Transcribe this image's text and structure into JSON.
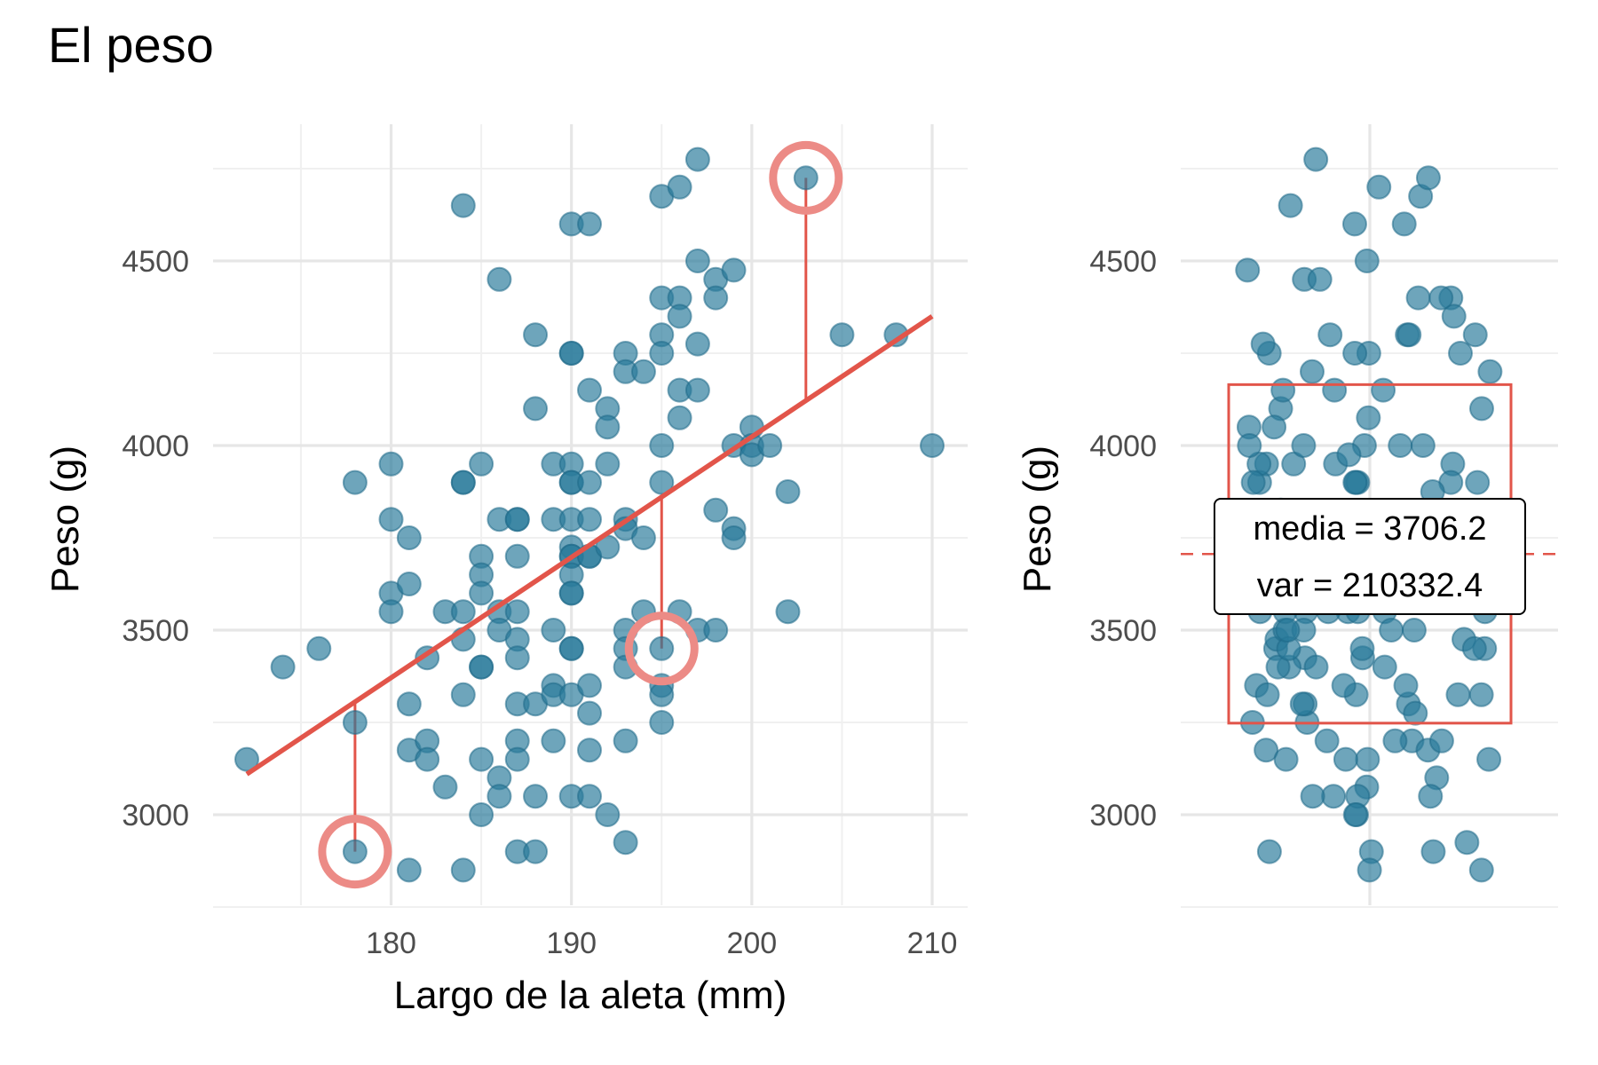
{
  "title": "El peso",
  "colors": {
    "point": "#2a7a9b",
    "accent": "#e2554a",
    "highlight": "#ec8b86"
  },
  "chart_data": [
    {
      "type": "scatter",
      "xlabel": "Largo de la aleta (mm)",
      "ylabel": "Peso (g)",
      "xlim": [
        172,
        212
      ],
      "ylim": [
        2740,
        4880
      ],
      "x_ticks": [
        180,
        190,
        200,
        210
      ],
      "y_ticks": [
        3000,
        3500,
        4000,
        4500
      ],
      "grid": true,
      "fit_line": {
        "x": [
          172,
          210
        ],
        "y": [
          3110,
          4350
        ]
      },
      "highlighted": [
        {
          "x": 178,
          "y": 2900,
          "fitted": 3305
        },
        {
          "x": 195,
          "y": 3450,
          "fitted": 3860
        },
        {
          "x": 203,
          "y": 4725,
          "fitted": 4120
        }
      ],
      "points": [
        [
          172,
          3150
        ],
        [
          174,
          3400
        ],
        [
          176,
          3450
        ],
        [
          178,
          3250
        ],
        [
          178,
          3900
        ],
        [
          178,
          2900
        ],
        [
          180,
          3950
        ],
        [
          180,
          3800
        ],
        [
          180,
          3600
        ],
        [
          180,
          3550
        ],
        [
          181,
          3750
        ],
        [
          181,
          3625
        ],
        [
          181,
          3300
        ],
        [
          181,
          3175
        ],
        [
          181,
          2850
        ],
        [
          182,
          3425
        ],
        [
          182,
          3200
        ],
        [
          182,
          3150
        ],
        [
          183,
          3550
        ],
        [
          183,
          3075
        ],
        [
          184,
          4650
        ],
        [
          184,
          3900
        ],
        [
          184,
          3900
        ],
        [
          184,
          3550
        ],
        [
          184,
          3475
        ],
        [
          184,
          3325
        ],
        [
          184,
          2850
        ],
        [
          185,
          3950
        ],
        [
          185,
          3700
        ],
        [
          185,
          3650
        ],
        [
          185,
          3600
        ],
        [
          185,
          3400
        ],
        [
          185,
          3400
        ],
        [
          185,
          3150
        ],
        [
          185,
          3000
        ],
        [
          186,
          4450
        ],
        [
          186,
          3800
        ],
        [
          186,
          3550
        ],
        [
          186,
          3500
        ],
        [
          186,
          3100
        ],
        [
          186,
          3050
        ],
        [
          187,
          3800
        ],
        [
          187,
          3800
        ],
        [
          187,
          3700
        ],
        [
          187,
          3550
        ],
        [
          187,
          3475
        ],
        [
          187,
          3425
        ],
        [
          187,
          3300
        ],
        [
          187,
          3200
        ],
        [
          187,
          3150
        ],
        [
          187,
          2900
        ],
        [
          188,
          4300
        ],
        [
          188,
          4100
        ],
        [
          188,
          3300
        ],
        [
          188,
          3050
        ],
        [
          188,
          2900
        ],
        [
          189,
          3950
        ],
        [
          189,
          3800
        ],
        [
          189,
          3500
        ],
        [
          189,
          3350
        ],
        [
          189,
          3325
        ],
        [
          189,
          3200
        ],
        [
          190,
          4600
        ],
        [
          190,
          4250
        ],
        [
          190,
          4250
        ],
        [
          190,
          3950
        ],
        [
          190,
          3900
        ],
        [
          190,
          3900
        ],
        [
          190,
          3800
        ],
        [
          190,
          3725
        ],
        [
          190,
          3700
        ],
        [
          190,
          3700
        ],
        [
          190,
          3650
        ],
        [
          190,
          3600
        ],
        [
          190,
          3600
        ],
        [
          190,
          3450
        ],
        [
          190,
          3450
        ],
        [
          190,
          3325
        ],
        [
          190,
          3050
        ],
        [
          191,
          4600
        ],
        [
          191,
          4150
        ],
        [
          191,
          3900
        ],
        [
          191,
          3800
        ],
        [
          191,
          3700
        ],
        [
          191,
          3700
        ],
        [
          191,
          3350
        ],
        [
          191,
          3275
        ],
        [
          191,
          3175
        ],
        [
          191,
          3050
        ],
        [
          192,
          4100
        ],
        [
          192,
          4050
        ],
        [
          192,
          3950
        ],
        [
          192,
          3725
        ],
        [
          192,
          3000
        ],
        [
          193,
          4250
        ],
        [
          193,
          4200
        ],
        [
          193,
          3800
        ],
        [
          193,
          3775
        ],
        [
          193,
          3500
        ],
        [
          193,
          3450
        ],
        [
          193,
          3400
        ],
        [
          193,
          3200
        ],
        [
          193,
          2925
        ],
        [
          194,
          4200
        ],
        [
          194,
          3750
        ],
        [
          194,
          3550
        ],
        [
          195,
          4675
        ],
        [
          195,
          4400
        ],
        [
          195,
          4300
        ],
        [
          195,
          4250
        ],
        [
          195,
          4000
        ],
        [
          195,
          3900
        ],
        [
          195,
          3450
        ],
        [
          195,
          3350
        ],
        [
          195,
          3325
        ],
        [
          195,
          3250
        ],
        [
          196,
          4700
        ],
        [
          196,
          4400
        ],
        [
          196,
          4350
        ],
        [
          196,
          4150
        ],
        [
          196,
          4075
        ],
        [
          196,
          3550
        ],
        [
          197,
          4775
        ],
        [
          197,
          4500
        ],
        [
          197,
          4275
        ],
        [
          197,
          4150
        ],
        [
          197,
          3500
        ],
        [
          198,
          4450
        ],
        [
          198,
          4400
        ],
        [
          198,
          3825
        ],
        [
          198,
          3500
        ],
        [
          199,
          4475
        ],
        [
          199,
          4000
        ],
        [
          199,
          3775
        ],
        [
          199,
          3750
        ],
        [
          200,
          4050
        ],
        [
          200,
          4000
        ],
        [
          200,
          3975
        ],
        [
          201,
          4000
        ],
        [
          202,
          3875
        ],
        [
          202,
          3550
        ],
        [
          203,
          4725
        ],
        [
          205,
          4300
        ],
        [
          208,
          4300
        ],
        [
          210,
          4000
        ]
      ]
    },
    {
      "type": "scatter",
      "ylabel": "Peso (g)",
      "ylim": [
        2740,
        4880
      ],
      "y_ticks": [
        3000,
        3500,
        4000,
        4500
      ],
      "grid": true,
      "mean": 3706.2,
      "variance": 210332.4,
      "box_range": [
        3248,
        4165
      ],
      "annotation": [
        "media = 3706.2",
        "var = 210332.4"
      ],
      "values": [
        3150,
        3400,
        3450,
        3250,
        3900,
        2900,
        3950,
        3800,
        3600,
        3550,
        3750,
        3625,
        3300,
        3175,
        2850,
        3425,
        3200,
        3150,
        3550,
        3075,
        4650,
        3900,
        3900,
        3550,
        3475,
        3325,
        2850,
        3950,
        3700,
        3650,
        3600,
        3400,
        3400,
        3150,
        3000,
        4450,
        3800,
        3550,
        3500,
        3100,
        3050,
        3800,
        3800,
        3700,
        3550,
        3475,
        3425,
        3300,
        3200,
        3150,
        2900,
        4300,
        4100,
        3300,
        3050,
        2900,
        3950,
        3800,
        3500,
        3350,
        3325,
        3200,
        4600,
        4250,
        4250,
        3950,
        3900,
        3900,
        3800,
        3725,
        3700,
        3700,
        3650,
        3600,
        3600,
        3450,
        3450,
        3325,
        3050,
        4600,
        4150,
        3900,
        3800,
        3700,
        3700,
        3350,
        3275,
        3175,
        3050,
        4100,
        4050,
        3950,
        3725,
        3000,
        4250,
        4200,
        3800,
        3775,
        3500,
        3450,
        3400,
        3200,
        2925,
        4200,
        3750,
        3550,
        4675,
        4400,
        4300,
        4250,
        4000,
        3900,
        3450,
        3350,
        3325,
        3250,
        4700,
        4400,
        4350,
        4150,
        4075,
        3550,
        4775,
        4500,
        4275,
        4150,
        3500,
        4450,
        4400,
        3825,
        3500,
        4475,
        4000,
        3775,
        3750,
        4050,
        4000,
        3975,
        4000,
        3875,
        3550,
        4725,
        4300,
        4300,
        4000
      ]
    }
  ]
}
